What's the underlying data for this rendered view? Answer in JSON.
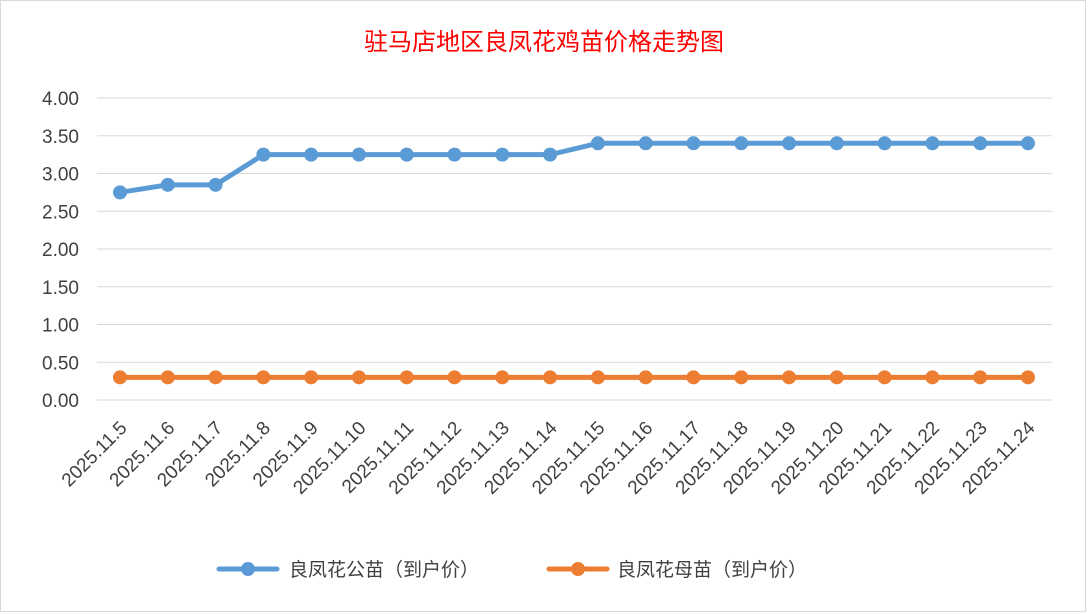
{
  "chart_data": {
    "type": "line",
    "title": "驻马店地区良凤花鸡苗价格走势图",
    "xlabel": "",
    "ylabel": "",
    "categories": [
      "2025.11.5",
      "2025.11.6",
      "2025.11.7",
      "2025.11.8",
      "2025.11.9",
      "2025.11.10",
      "2025.11.11",
      "2025.11.12",
      "2025.11.13",
      "2025.11.14",
      "2025.11.15",
      "2025.11.16",
      "2025.11.17",
      "2025.11.18",
      "2025.11.19",
      "2025.11.20",
      "2025.11.21",
      "2025.11.22",
      "2025.11.23",
      "2025.11.24"
    ],
    "series": [
      {
        "name": "良凤花公苗（到户价）",
        "color": "#5b9bd5",
        "values": [
          2.75,
          2.85,
          2.85,
          3.25,
          3.25,
          3.25,
          3.25,
          3.25,
          3.25,
          3.25,
          3.4,
          3.4,
          3.4,
          3.4,
          3.4,
          3.4,
          3.4,
          3.4,
          3.4,
          3.4
        ]
      },
      {
        "name": "良凤花母苗（到户价）",
        "color": "#ed7d31",
        "values": [
          0.3,
          0.3,
          0.3,
          0.3,
          0.3,
          0.3,
          0.3,
          0.3,
          0.3,
          0.3,
          0.3,
          0.3,
          0.3,
          0.3,
          0.3,
          0.3,
          0.3,
          0.3,
          0.3,
          0.3
        ]
      }
    ],
    "yticks": [
      "0.00",
      "0.50",
      "1.00",
      "1.50",
      "2.00",
      "2.50",
      "3.00",
      "3.50",
      "4.00"
    ],
    "ylim": [
      0,
      4
    ],
    "grid": true,
    "legend_position": "bottom"
  }
}
